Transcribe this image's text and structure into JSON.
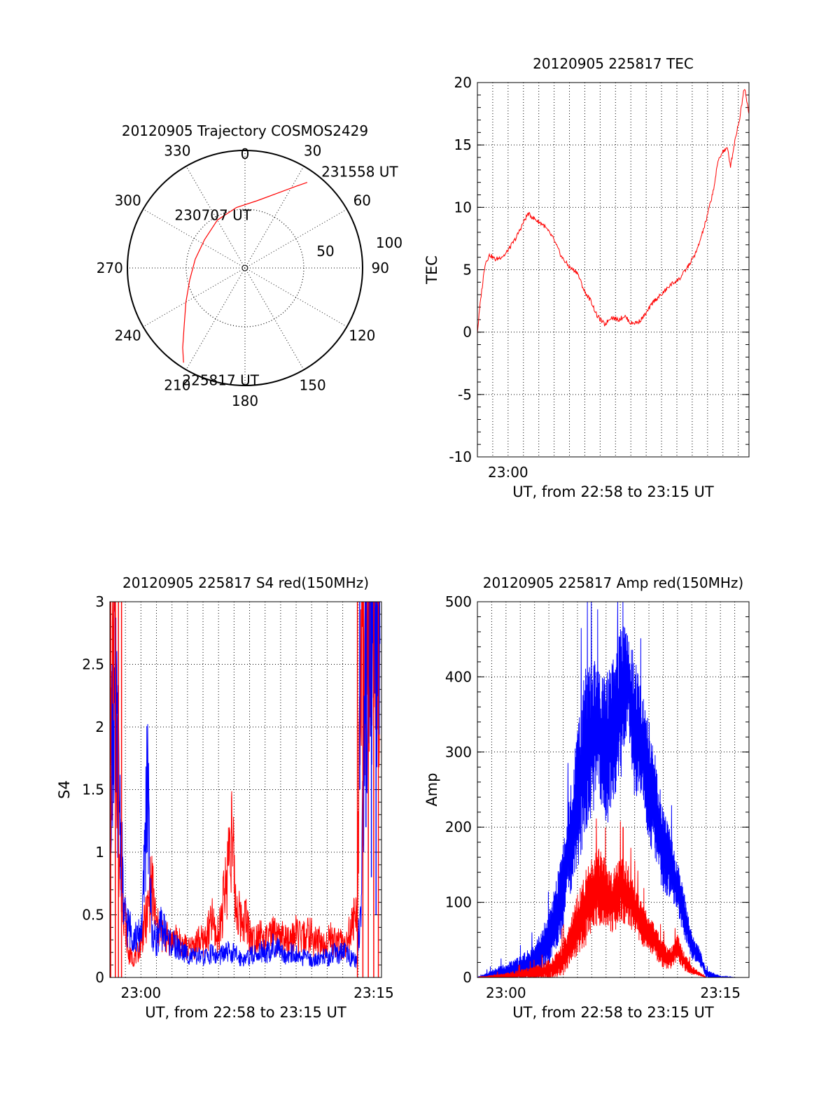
{
  "colors": {
    "red": "#ff0000",
    "blue": "#0000ff",
    "axis": "#000000",
    "grid": "#000000"
  },
  "chart_data": [
    {
      "id": "trajectory",
      "type": "polar",
      "title": "20120905 Trajectory COSMOS2429",
      "azimuth_labels": [
        {
          "text": "0",
          "az": 0
        },
        {
          "text": "30",
          "az": 30
        },
        {
          "text": "60",
          "az": 60
        },
        {
          "text": "90",
          "az": 90
        },
        {
          "text": "120",
          "az": 120
        },
        {
          "text": "150",
          "az": 150
        },
        {
          "text": "180",
          "az": 180
        },
        {
          "text": "210",
          "az": 210
        },
        {
          "text": "240",
          "az": 240
        },
        {
          "text": "270",
          "az": 270
        },
        {
          "text": "300",
          "az": 300
        },
        {
          "text": "330",
          "az": 330
        }
      ],
      "radial_labels": [
        "50",
        "100"
      ],
      "radial_range": [
        0,
        100
      ],
      "grid": "dotted",
      "track": {
        "color": "red",
        "points": [
          {
            "az": 213,
            "r": 96
          },
          {
            "az": 218,
            "r": 86
          },
          {
            "az": 226,
            "r": 72
          },
          {
            "az": 240,
            "r": 58
          },
          {
            "az": 258,
            "r": 48
          },
          {
            "az": 280,
            "r": 43
          },
          {
            "az": 305,
            "r": 42
          },
          {
            "az": 330,
            "r": 47
          },
          {
            "az": 352,
            "r": 52
          },
          {
            "az": 10,
            "r": 58
          },
          {
            "az": 24,
            "r": 70
          },
          {
            "az": 32,
            "r": 82
          },
          {
            "az": 36,
            "r": 90
          }
        ]
      },
      "annotations": [
        {
          "text": "225817 UT",
          "az": 213,
          "r": 96
        },
        {
          "text": "230707 UT",
          "az": 305,
          "r": 42
        },
        {
          "text": "231558 UT",
          "az": 36,
          "r": 90
        }
      ]
    },
    {
      "id": "tec",
      "type": "line",
      "title": "20120905 225817 TEC",
      "xlabel": "UT, from 22:58 to 23:15 UT",
      "ylabel": "TEC",
      "x_unit": "minutes after 22:58 UT",
      "xlim": [
        0,
        17.7
      ],
      "ylim": [
        -10,
        20
      ],
      "yticks": [
        -10,
        -5,
        0,
        5,
        10,
        15,
        20
      ],
      "xtick_labels": [
        {
          "text": "23:00",
          "x": 2
        }
      ],
      "grid": true,
      "series": [
        {
          "color": "red",
          "x": [
            0,
            0.2,
            0.5,
            0.8,
            1.2,
            1.8,
            2.5,
            3.0,
            3.3,
            3.8,
            4.3,
            4.9,
            5.5,
            6.0,
            6.5,
            7.0,
            7.4,
            7.8,
            8.3,
            8.7,
            9.2,
            9.6,
            10.0,
            10.5,
            11.0,
            11.5,
            12.0,
            12.6,
            13.2,
            13.8,
            14.3,
            14.9,
            15.4,
            15.7,
            16.0,
            16.3,
            16.5,
            16.8,
            17.1,
            17.4,
            17.7
          ],
          "y": [
            0,
            2.5,
            5.5,
            6.2,
            5.8,
            6.2,
            7.5,
            8.8,
            9.5,
            9.0,
            8.6,
            7.6,
            6.0,
            5.2,
            4.8,
            3.2,
            2.5,
            1.3,
            0.6,
            1.2,
            1.0,
            1.3,
            0.7,
            0.8,
            1.5,
            2.5,
            3.0,
            3.8,
            4.3,
            5.4,
            6.5,
            8.9,
            11.5,
            13.8,
            14.5,
            14.7,
            13.3,
            15.5,
            17.2,
            19.7,
            17.6
          ]
        }
      ]
    },
    {
      "id": "s4",
      "type": "line",
      "title": "20120905 225817 S4 red(150MHz)",
      "xlabel": "UT, from 22:58 to 23:15 UT",
      "ylabel": "S4",
      "x_unit": "minutes after 22:58 UT",
      "xlim": [
        0,
        17.5
      ],
      "ylim": [
        0,
        3
      ],
      "yticks": [
        0,
        0.5,
        1,
        1.5,
        2,
        2.5,
        3
      ],
      "ytick_labels": [
        "0",
        "0.5",
        "1",
        "1.5",
        "2",
        "2.5",
        "3"
      ],
      "xtick_labels": [
        {
          "text": "23:00",
          "x": 2
        },
        {
          "text": "23:15",
          "x": 17
        }
      ],
      "grid": true,
      "series": [
        {
          "color": "red",
          "x": [
            0,
            0.3,
            0.6,
            0.9,
            1.2,
            1.5,
            1.8,
            2.1,
            2.4,
            2.7,
            3.0,
            3.3,
            3.6,
            3.9,
            4.2,
            4.5,
            4.8,
            5.1,
            5.4,
            5.7,
            6.0,
            6.3,
            6.6,
            6.9,
            7.2,
            7.5,
            7.8,
            8.1,
            8.4,
            8.7,
            9.0,
            9.3,
            9.6,
            9.9,
            10.2,
            10.5,
            10.8,
            11.1,
            11.4,
            11.7,
            12.0,
            12.3,
            12.6,
            12.9,
            13.2,
            13.5,
            13.8,
            14.1,
            14.4,
            14.7,
            15.0,
            15.3,
            15.6,
            15.9,
            16.2,
            16.5,
            16.8,
            17.1,
            17.4
          ],
          "y": [
            1.5,
            2.8,
            1.0,
            0.6,
            0.18,
            0.15,
            0.2,
            0.35,
            0.5,
            0.75,
            0.4,
            0.35,
            0.32,
            0.3,
            0.3,
            0.28,
            0.25,
            0.22,
            0.25,
            0.3,
            0.28,
            0.35,
            0.45,
            0.3,
            0.5,
            0.75,
            1.25,
            0.6,
            0.45,
            0.5,
            0.35,
            0.3,
            0.38,
            0.28,
            0.3,
            0.35,
            0.3,
            0.32,
            0.28,
            0.3,
            0.35,
            0.3,
            0.32,
            0.35,
            0.28,
            0.3,
            0.25,
            0.35,
            0.28,
            0.3,
            0.25,
            0.3,
            0.4,
            0.5,
            2.5,
            3.0,
            3.0,
            3.0,
            3.0
          ]
        },
        {
          "color": "blue",
          "x": [
            0,
            0.3,
            0.6,
            0.9,
            1.2,
            1.5,
            1.8,
            2.1,
            2.4,
            2.7,
            3.0,
            3.3,
            3.6,
            3.9,
            4.2,
            4.5,
            4.8,
            5.1,
            5.4,
            5.7,
            6.0,
            6.3,
            6.6,
            6.9,
            7.2,
            7.5,
            7.8,
            8.1,
            8.4,
            8.7,
            9.0,
            9.3,
            9.6,
            9.9,
            10.2,
            10.5,
            10.8,
            11.1,
            11.4,
            11.7,
            12.0,
            12.3,
            12.6,
            12.9,
            13.2,
            13.5,
            13.8,
            14.1,
            14.4,
            14.7,
            15.0,
            15.3,
            15.6,
            15.9,
            16.2,
            16.5,
            16.8,
            17.1,
            17.4
          ],
          "y": [
            1.6,
            2.2,
            1.5,
            0.5,
            0.4,
            0.35,
            0.3,
            0.45,
            1.6,
            0.35,
            0.3,
            0.4,
            0.35,
            0.28,
            0.25,
            0.22,
            0.2,
            0.18,
            0.16,
            0.17,
            0.15,
            0.18,
            0.2,
            0.16,
            0.18,
            0.2,
            0.2,
            0.18,
            0.16,
            0.15,
            0.17,
            0.18,
            0.2,
            0.22,
            0.2,
            0.25,
            0.22,
            0.2,
            0.18,
            0.2,
            0.18,
            0.15,
            0.16,
            0.15,
            0.14,
            0.15,
            0.17,
            0.15,
            0.2,
            0.18,
            0.2,
            0.18,
            0.15,
            0.12,
            0.6,
            2.5,
            3.0,
            3.0,
            3.0
          ]
        }
      ]
    },
    {
      "id": "amp",
      "type": "line",
      "title": "20120905 225817 Amp red(150MHz)",
      "xlabel": "UT, from 22:58 to 23:15 UT",
      "ylabel": "Amp",
      "x_unit": "minutes after 22:58 UT",
      "xlim": [
        0,
        19
      ],
      "ylim": [
        0,
        500
      ],
      "yticks": [
        0,
        100,
        200,
        300,
        400,
        500
      ],
      "xtick_labels": [
        {
          "text": "23:00",
          "x": 2
        },
        {
          "text": "23:15",
          "x": 17
        }
      ],
      "grid": true,
      "series": [
        {
          "color": "blue",
          "x": [
            0,
            1,
            2,
            3,
            4,
            4.5,
            5,
            5.5,
            6,
            6.5,
            7,
            7.5,
            8,
            8.5,
            9,
            9.5,
            10,
            10.5,
            11,
            11.5,
            12,
            12.5,
            13,
            13.5,
            14,
            14.5,
            15,
            15.5,
            16,
            17,
            18,
            19
          ],
          "y": [
            0,
            3,
            8,
            12,
            20,
            35,
            50,
            80,
            120,
            180,
            240,
            290,
            320,
            330,
            300,
            330,
            360,
            400,
            330,
            310,
            260,
            220,
            170,
            150,
            120,
            80,
            40,
            30,
            5,
            0,
            0,
            0
          ],
          "spread": [
            0,
            6,
            10,
            14,
            20,
            25,
            30,
            40,
            50,
            60,
            80,
            100,
            90,
            70,
            90,
            80,
            90,
            60,
            80,
            60,
            70,
            60,
            50,
            40,
            30,
            25,
            15,
            10,
            5,
            2,
            0,
            0
          ]
        },
        {
          "color": "red",
          "x": [
            0,
            1,
            2,
            3,
            4,
            4.5,
            5,
            5.5,
            6,
            6.5,
            7,
            7.5,
            8,
            8.5,
            9,
            9.5,
            10,
            10.5,
            11,
            11.5,
            12,
            12.5,
            13,
            13.5,
            14,
            14.5,
            15,
            15.5,
            16,
            17,
            18,
            19
          ],
          "y": [
            0,
            1,
            2,
            4,
            6,
            8,
            10,
            15,
            25,
            45,
            70,
            90,
            110,
            120,
            110,
            100,
            120,
            110,
            90,
            70,
            60,
            45,
            30,
            25,
            40,
            20,
            10,
            5,
            0,
            0,
            0,
            0
          ],
          "spread": [
            0,
            2,
            4,
            6,
            8,
            10,
            12,
            15,
            20,
            25,
            35,
            45,
            40,
            45,
            40,
            35,
            40,
            35,
            30,
            25,
            20,
            18,
            15,
            12,
            15,
            10,
            5,
            3,
            0,
            0,
            0,
            0
          ]
        }
      ]
    }
  ]
}
